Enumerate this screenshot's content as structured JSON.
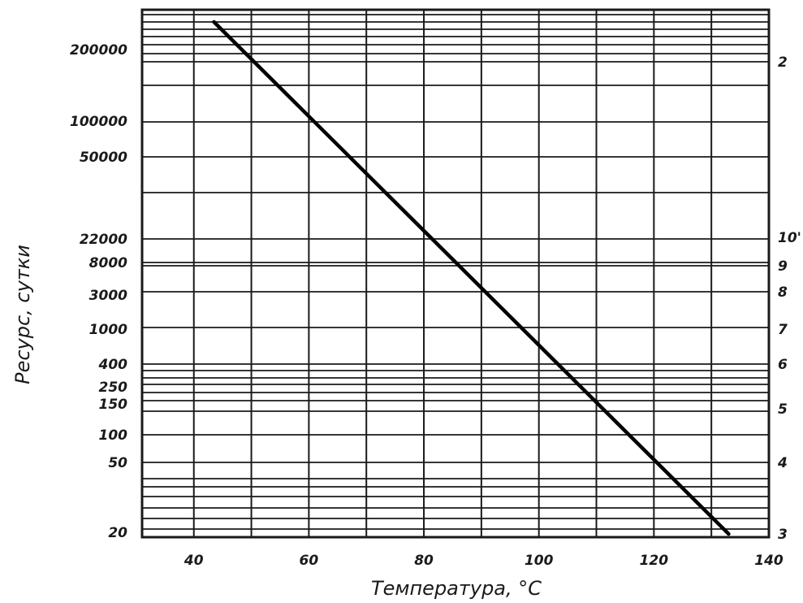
{
  "chart_data": {
    "type": "line",
    "xlabel": "Температура, °С",
    "ylabel": "Ресурс, сутки",
    "xlim": [
      31,
      140
    ],
    "x_ticks": [
      "40",
      "60",
      "80",
      "100",
      "120",
      "140"
    ],
    "left_ticks": [
      "200000",
      "100000",
      "50000",
      "22000",
      "8000",
      "3000",
      "1000",
      "400",
      "250",
      "150",
      "100",
      "50",
      "20"
    ],
    "right_ticks": [
      "2",
      "10'",
      "9",
      "8",
      "7",
      "6",
      "5",
      "4",
      "3"
    ],
    "grid": true,
    "series": [
      {
        "x": [
          43.5,
          133
        ],
        "left_label_level": [
          "above 200000",
          "below 20"
        ]
      }
    ]
  }
}
